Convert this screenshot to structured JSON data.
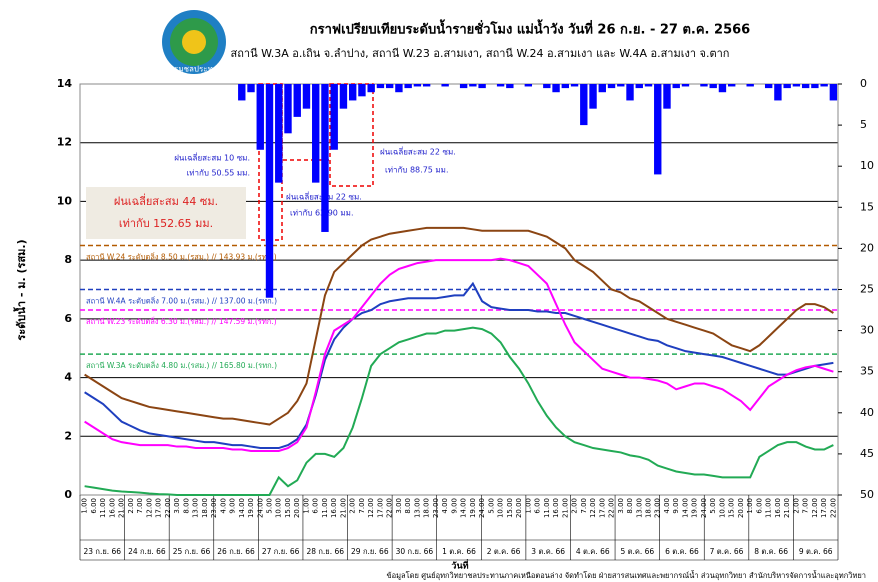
{
  "chart_data": {
    "type": "line",
    "title": "กราฟเปรียบเทียบระดับน้ำรายชั่วโมง แม่น้ำวัง วันที่ 26 ก.ย. - 27 ต.ค. 2566",
    "subtitle": "สถานี W.3A อ.เถิน จ.ลำปาง, สถานี W.23 อ.สามเงา, สถานี W.24 อ.สามเงา และ  W.4A อ.สามเงา จ.ตาก",
    "logo_text": "กรมชลประทาน",
    "y_label": "ระดับน้ำ - ม. (รสม.)",
    "x_label": "วันที่",
    "footer": "ข้อมูลโดย ศูนย์อุทกวิทยาชลประทานภาคเหนือตอนล่าง  จัดทำโดย ฝ่ายสารสนเทศและพยากรณ์น้ำ ส่วนอุทกวิทยา สำนักบริหารจัดการน้ำและอุทกวิทยา",
    "days": [
      "23 ก.ย. 66",
      "24 ก.ย. 66",
      "25 ก.ย. 66",
      "26 ก.ย. 66",
      "27 ก.ย. 66",
      "28 ก.ย. 66",
      "29 ก.ย. 66",
      "30 ก.ย. 66",
      "1 ต.ค. 66",
      "2 ต.ค. 66",
      "3 ต.ค. 66",
      "4 ต.ค. 66",
      "5 ต.ค. 66",
      "6 ต.ค. 66",
      "7 ต.ค. 66",
      "8 ต.ค. 66",
      "9 ต.ค. 66"
    ],
    "categories": [
      "1.00",
      "6.00",
      "11.00",
      "16.00",
      "21.00",
      "2.00",
      "7.00",
      "12.00",
      "17.00",
      "22.00",
      "3.00",
      "8.00",
      "13.00",
      "18.00",
      "23.00",
      "4.00",
      "9.00",
      "14.00",
      "19.00",
      "24.00",
      "5.00",
      "10.00",
      "15.00",
      "20.00",
      "1.00",
      "6.00",
      "11.00",
      "16.00",
      "21.00",
      "2.00",
      "7.00",
      "12.00",
      "17.00",
      "22.00",
      "3.00",
      "8.00",
      "13.00",
      "18.00",
      "23.00",
      "4.00",
      "9.00",
      "14.00",
      "19.00",
      "24.00",
      "5.00",
      "10.00",
      "15.00",
      "20.00",
      "1.00",
      "6.00",
      "11.00",
      "16.00",
      "21.00",
      "2.00",
      "7.00",
      "12.00",
      "17.00",
      "22.00",
      "3.00",
      "8.00",
      "13.00",
      "18.00",
      "23.00",
      "4.00",
      "9.00",
      "14.00",
      "19.00",
      "24.00",
      "5.00",
      "10.00",
      "15.00",
      "20.00",
      "1.00",
      "6.00",
      "11.00",
      "16.00",
      "21.00",
      "2.00",
      "7.00",
      "12.00",
      "17.00",
      "22.00"
    ],
    "series": [
      {
        "color": "#8b4513",
        "values": [
          4.1,
          3.9,
          3.7,
          3.5,
          3.3,
          3.2,
          3.1,
          3.0,
          2.95,
          2.9,
          2.85,
          2.8,
          2.75,
          2.7,
          2.65,
          2.6,
          2.6,
          2.55,
          2.5,
          2.45,
          2.4,
          2.6,
          2.8,
          3.2,
          3.8,
          5.3,
          6.8,
          7.6,
          7.9,
          8.2,
          8.5,
          8.7,
          8.8,
          8.9,
          8.95,
          9.0,
          9.05,
          9.1,
          9.1,
          9.1,
          9.1,
          9.1,
          9.05,
          9.0,
          9.0,
          9.0,
          9.0,
          9.0,
          9.0,
          8.9,
          8.8,
          8.6,
          8.4,
          8.0,
          7.8,
          7.6,
          7.3,
          7.0,
          6.9,
          6.7,
          6.6,
          6.4,
          6.2,
          6.0,
          5.9,
          5.8,
          5.7,
          5.6,
          5.5,
          5.3,
          5.1,
          5.0,
          4.9,
          5.1,
          5.4,
          5.7,
          6.0,
          6.3,
          6.5,
          6.5,
          6.4,
          6.2
        ]
      },
      {
        "color": "#1f3fbf",
        "values": [
          3.5,
          3.3,
          3.1,
          2.8,
          2.5,
          2.35,
          2.2,
          2.1,
          2.05,
          2.0,
          1.95,
          1.9,
          1.85,
          1.8,
          1.8,
          1.75,
          1.7,
          1.7,
          1.65,
          1.6,
          1.6,
          1.6,
          1.7,
          1.9,
          2.4,
          3.4,
          4.6,
          5.3,
          5.7,
          6.0,
          6.2,
          6.3,
          6.5,
          6.6,
          6.65,
          6.7,
          6.7,
          6.7,
          6.7,
          6.75,
          6.8,
          6.8,
          7.2,
          6.6,
          6.4,
          6.35,
          6.3,
          6.3,
          6.3,
          6.25,
          6.25,
          6.2,
          6.2,
          6.1,
          6.0,
          5.9,
          5.8,
          5.7,
          5.6,
          5.5,
          5.4,
          5.3,
          5.25,
          5.1,
          5.0,
          4.9,
          4.85,
          4.8,
          4.75,
          4.7,
          4.6,
          4.5,
          4.4,
          4.3,
          4.2,
          4.1,
          4.1,
          4.2,
          4.3,
          4.4,
          4.45,
          4.5
        ]
      },
      {
        "color": "#ff00ff",
        "values": [
          2.5,
          2.3,
          2.1,
          1.9,
          1.8,
          1.75,
          1.7,
          1.7,
          1.7,
          1.7,
          1.65,
          1.65,
          1.6,
          1.6,
          1.6,
          1.6,
          1.55,
          1.55,
          1.5,
          1.5,
          1.5,
          1.5,
          1.6,
          1.8,
          2.3,
          3.5,
          4.8,
          5.6,
          5.8,
          6.0,
          6.4,
          6.8,
          7.2,
          7.5,
          7.7,
          7.8,
          7.9,
          7.95,
          8.0,
          8.0,
          8.0,
          8.0,
          8.0,
          8.0,
          8.0,
          8.05,
          8.0,
          7.9,
          7.8,
          7.5,
          7.2,
          6.5,
          5.8,
          5.2,
          4.9,
          4.6,
          4.3,
          4.2,
          4.1,
          4.0,
          4.0,
          3.95,
          3.9,
          3.8,
          3.6,
          3.7,
          3.8,
          3.8,
          3.7,
          3.6,
          3.4,
          3.2,
          2.9,
          3.3,
          3.7,
          3.9,
          4.1,
          4.25,
          4.35,
          4.4,
          4.3,
          4.2
        ]
      },
      {
        "color": "#22aa55",
        "values": [
          0.3,
          0.25,
          0.2,
          0.15,
          0.12,
          0.1,
          0.08,
          0.05,
          0.03,
          0.02,
          0,
          0,
          0,
          0,
          0,
          0,
          0,
          0,
          0,
          0,
          0,
          0.6,
          0.3,
          0.5,
          1.1,
          1.4,
          1.4,
          1.3,
          1.6,
          2.3,
          3.3,
          4.4,
          4.8,
          5.0,
          5.2,
          5.3,
          5.4,
          5.5,
          5.5,
          5.6,
          5.6,
          5.65,
          5.7,
          5.65,
          5.5,
          5.2,
          4.7,
          4.3,
          3.8,
          3.2,
          2.7,
          2.3,
          2.0,
          1.8,
          1.7,
          1.6,
          1.55,
          1.5,
          1.45,
          1.35,
          1.3,
          1.2,
          1.0,
          0.9,
          0.8,
          0.75,
          0.7,
          0.7,
          0.65,
          0.6,
          0.6,
          0.6,
          0.6,
          1.3,
          1.5,
          1.7,
          1.8,
          1.8,
          1.65,
          1.55,
          1.55,
          1.7
        ]
      },
      {
        "color": "#0000ff",
        "axis": "y2",
        "type": "bar",
        "values": [
          0,
          0,
          0,
          0,
          0,
          0,
          0,
          0,
          0,
          0,
          0,
          0,
          0,
          0,
          0,
          0,
          0,
          2,
          1,
          8,
          26,
          12,
          6,
          4,
          3,
          12,
          18,
          8,
          3,
          2,
          1.5,
          1,
          0.5,
          0.5,
          1,
          0.5,
          0.3,
          0.3,
          0,
          0.3,
          0,
          0.5,
          0.3,
          0.5,
          0,
          0.3,
          0.5,
          0,
          0.3,
          0,
          0.5,
          1,
          0.5,
          0.3,
          5,
          3,
          1,
          0.5,
          0.3,
          2,
          0.5,
          0.3,
          11,
          3,
          0.5,
          0.3,
          0,
          0.3,
          0.5,
          1,
          0.3,
          0,
          0.3,
          0,
          0.5,
          2,
          0.5,
          0.3,
          0.5,
          0.5,
          0.3,
          2
        ]
      }
    ],
    "ylim": [
      0,
      14
    ],
    "yticks": [
      0,
      2,
      4,
      6,
      8,
      10,
      12,
      14
    ],
    "y2lim": [
      0,
      50
    ],
    "y2ticks": [
      0,
      5,
      10,
      15,
      20,
      25,
      30,
      35,
      40,
      45,
      50
    ],
    "y2_inverted": true,
    "grid": true,
    "ref_lines": [
      {
        "value": 8.5,
        "color": "#b35a00",
        "label": "สถานี W.24 ระดับตลิ่ง 8.50 ม.(รสม.) // 143.93 ม.(รทก.)"
      },
      {
        "value": 7.0,
        "color": "#1f3fbf",
        "label": "สถานี W.4A ระดับตลิ่ง 7.00 ม.(รสม.) // 137.00 ม.(รทก.)"
      },
      {
        "value": 6.3,
        "color": "#ff00ff",
        "label": "สถานี W.23 ระดับตลิ่ง 6.30 ม.(รสม.) // 147.59 ม.(รทก.)"
      },
      {
        "value": 4.8,
        "color": "#22aa55",
        "label": "สถานี W.3A ระดับตลิ่ง 4.80 ม.(รสม.) // 165.80 ม.(รทก.)"
      }
    ],
    "total_box": [
      "ฝนเฉลี่ยสะสม 44 ซม.",
      "เท่ากับ 152.65  มม."
    ],
    "rain_notes": [
      [
        "ฝนเฉลี่ยสะสม 10 ซม.",
        "เท่ากับ 50.55 มม."
      ],
      [
        "ฝนเฉลี่ยสะสม 22 ซม.",
        "เท่ากับ 63.90 มม."
      ],
      [
        "ฝนเฉลี่ยสะสม 22 ซม.",
        "เท่ากับ 88.75 มม."
      ]
    ]
  }
}
